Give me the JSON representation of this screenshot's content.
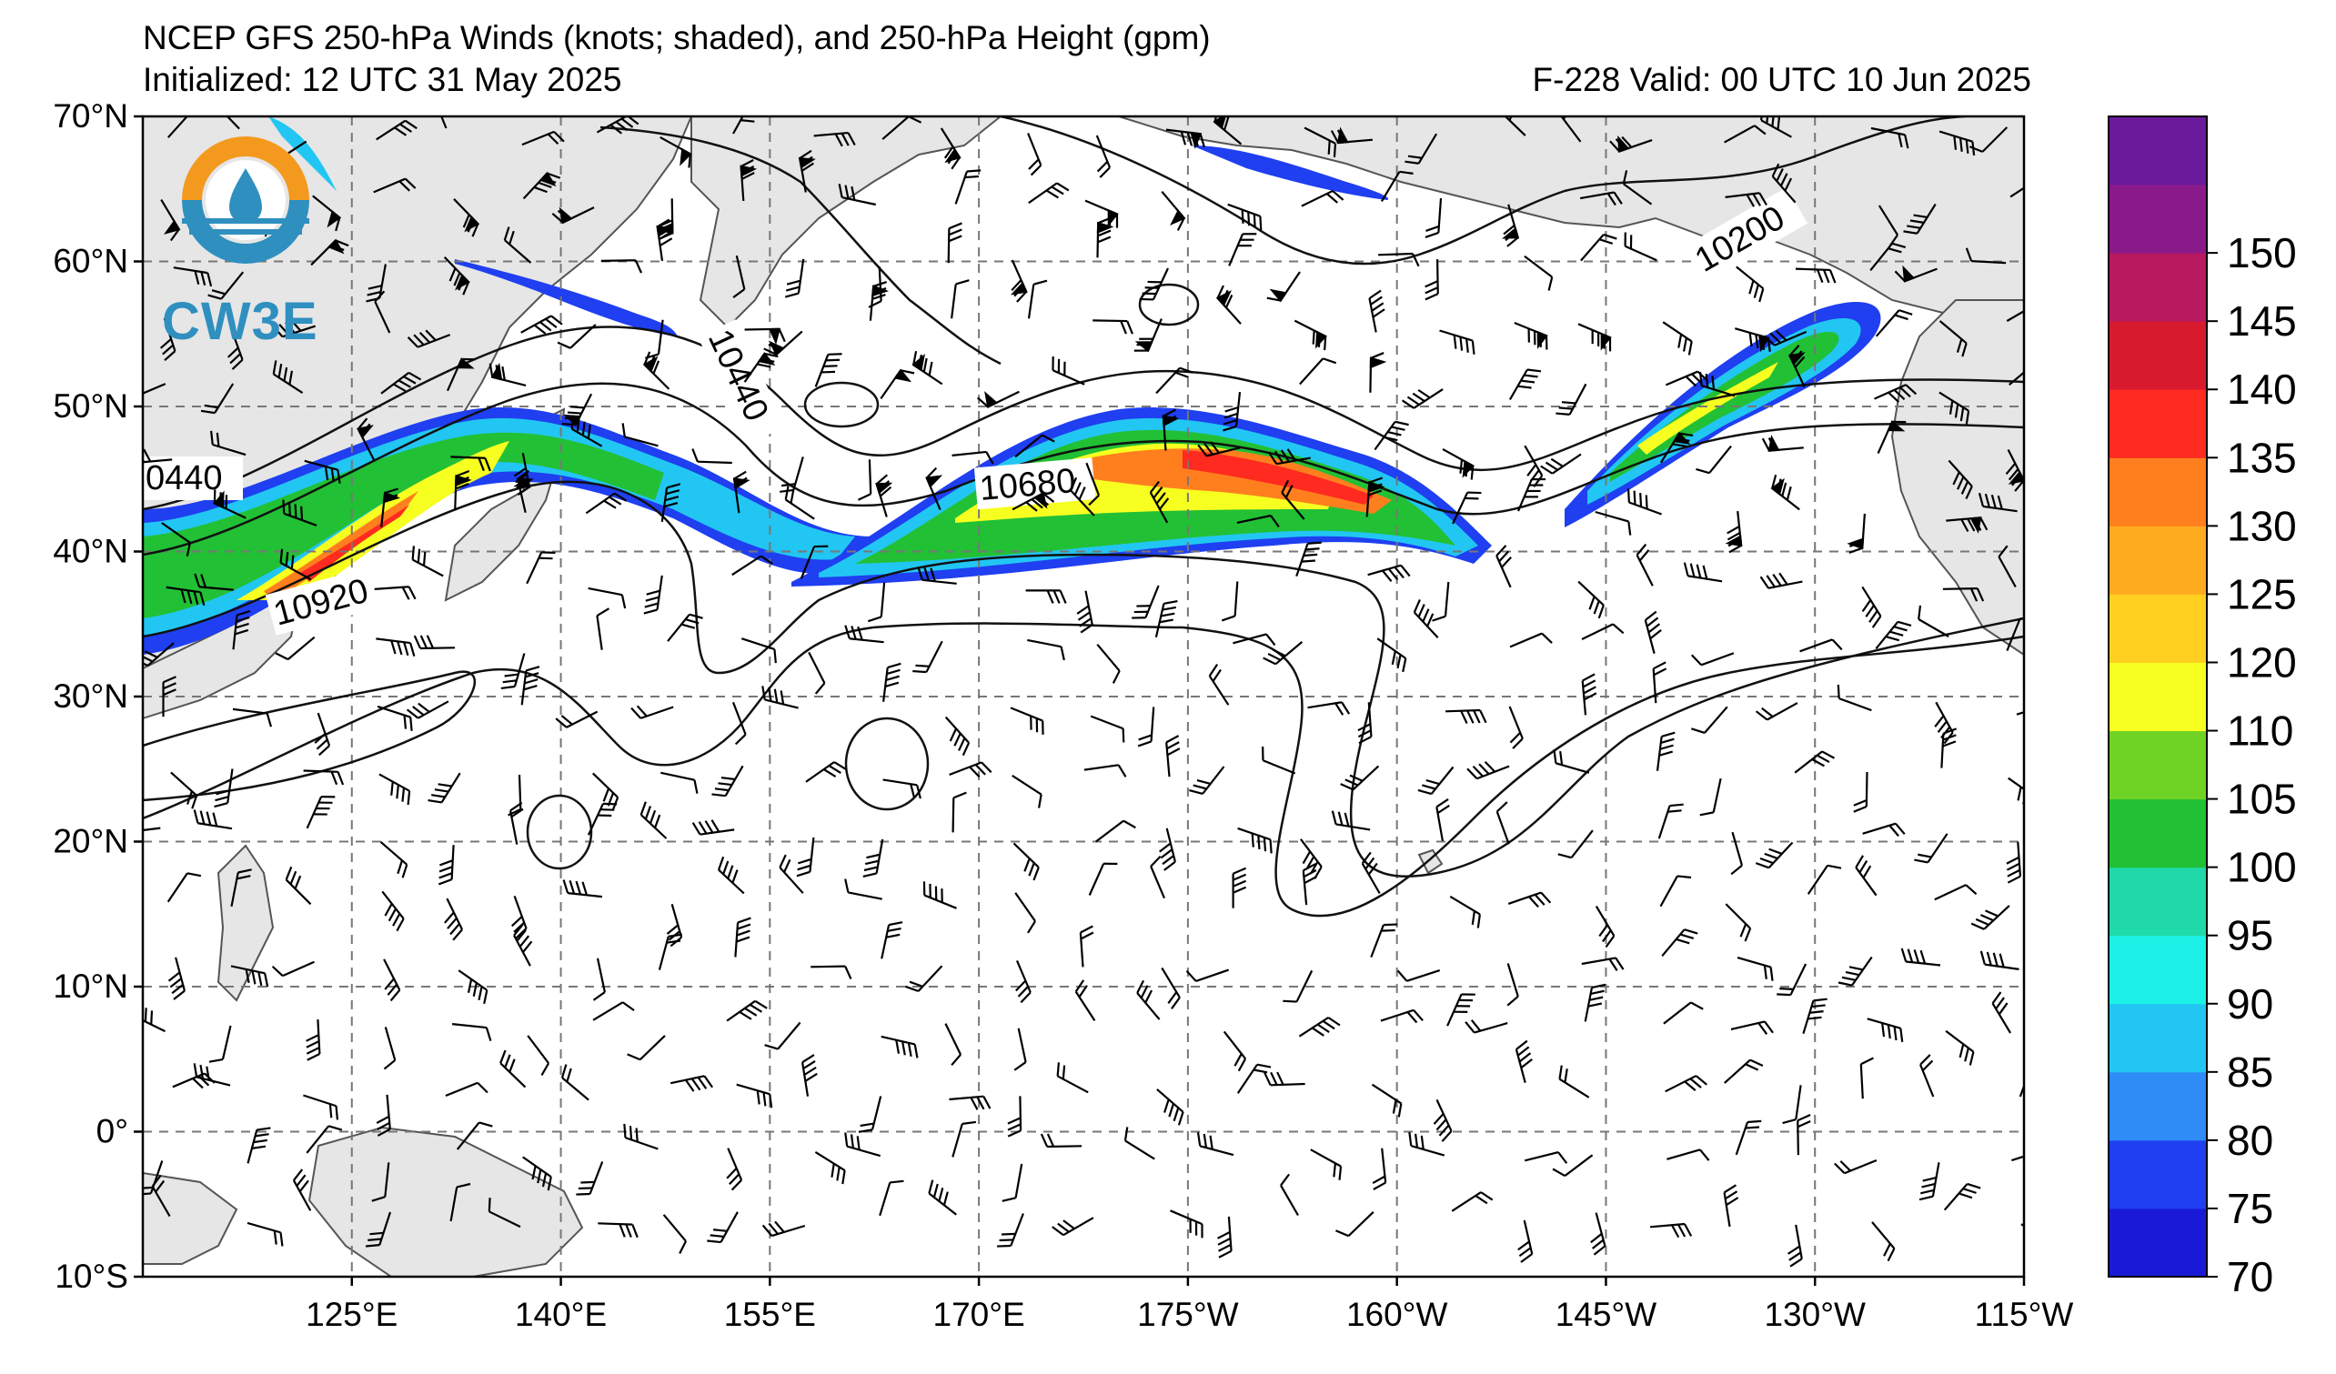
{
  "header": {
    "title": "NCEP GFS 250-hPa Winds (knots; shaded), and 250-hPa Height (gpm)",
    "initialized": "Initialized: 12 UTC 31 May 2025",
    "valid": "F-228  Valid: 00 UTC 10 Jun 2025"
  },
  "logo": {
    "text": "CW3E"
  },
  "map": {
    "lon_range": [
      110,
      245
    ],
    "lat_range": [
      -10,
      70
    ],
    "lat_labels": [
      "70°N",
      "60°N",
      "50°N",
      "40°N",
      "30°N",
      "20°N",
      "10°N",
      "0°",
      "10°S"
    ],
    "lon_labels": [
      "125°E",
      "140°E",
      "155°E",
      "170°E",
      "175°W",
      "160°W",
      "145°W",
      "130°W",
      "115°W"
    ],
    "height_contour_labels": [
      "0440",
      "10920",
      "10440",
      "10680",
      "10200"
    ],
    "wind_barbs": "shown"
  },
  "colorbar": {
    "levels": [
      "70",
      "75",
      "80",
      "85",
      "90",
      "95",
      "100",
      "105",
      "110",
      "120",
      "125",
      "130",
      "135",
      "140",
      "145",
      "150"
    ],
    "colors": [
      "#1a1ad6",
      "#1f3ff0",
      "#2f8bf5",
      "#22c6f2",
      "#1df0e6",
      "#1fd9a8",
      "#22c035",
      "#6fd325",
      "#f7ff20",
      "#ffd01f",
      "#ffab1f",
      "#ff7f1f",
      "#ff2a20",
      "#d81a2f",
      "#b81a5f",
      "#8a1a8a",
      "#6a1a9a"
    ]
  }
}
